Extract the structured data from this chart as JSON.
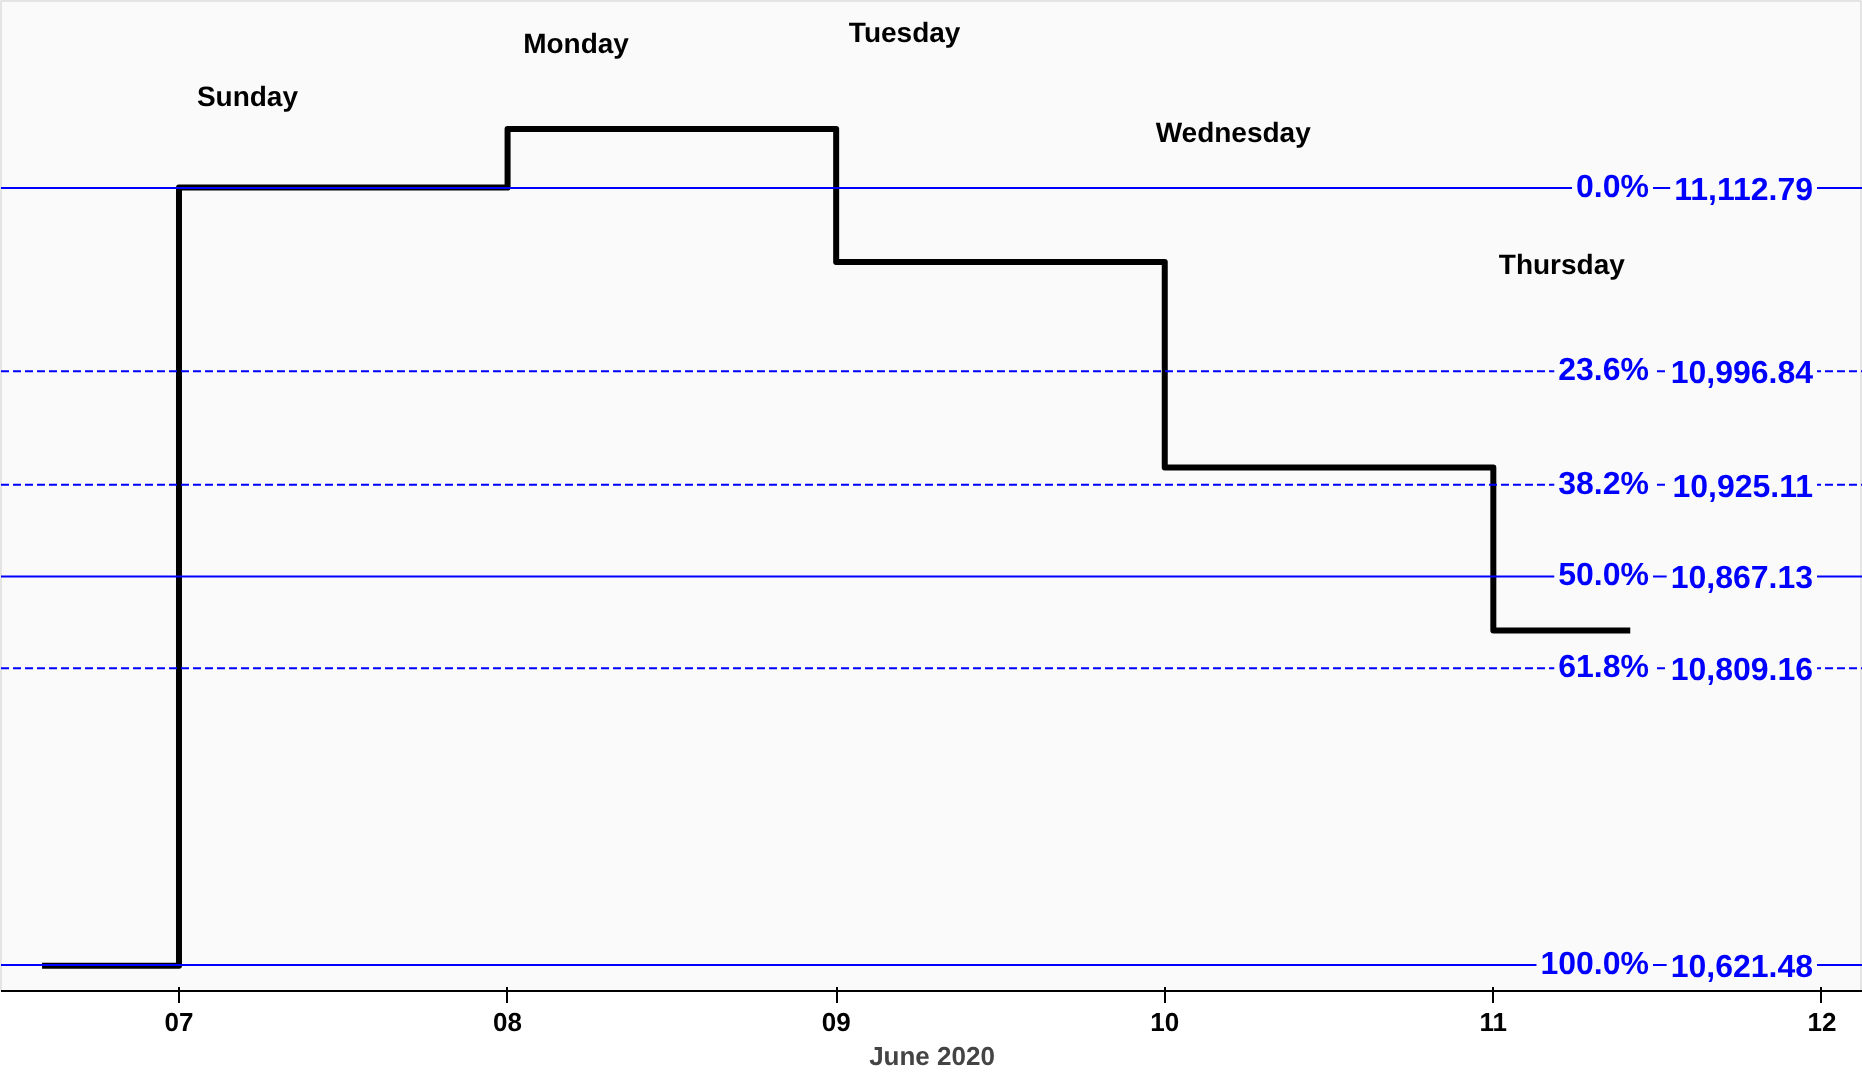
{
  "chart_data": {
    "type": "step",
    "xlabel": "June 2020",
    "x": [
      "2020-06-06T14:00",
      "2020-06-07",
      "2020-06-08",
      "2020-06-09",
      "2020-06-10",
      "2020-06-11",
      "2020-06-11T10:00"
    ],
    "series": [
      {
        "color": "#000000",
        "values": [
          10621,
          11113,
          11150,
          11066,
          10936,
          10833,
          10833
        ]
      }
    ],
    "xlim": [
      "2020-06-06T11:00",
      "2020-06-12T03:00"
    ],
    "xticks": [
      {
        "value": "2020-06-07",
        "label": "07"
      },
      {
        "value": "2020-06-08",
        "label": "08"
      },
      {
        "value": "2020-06-09",
        "label": "09"
      },
      {
        "value": "2020-06-10",
        "label": "10"
      },
      {
        "value": "2020-06-11",
        "label": "11"
      },
      {
        "value": "2020-06-12",
        "label": "12"
      }
    ],
    "ylim": [
      10605,
      11231
    ],
    "tick_labels": "x",
    "grid": false,
    "line_style": "solid",
    "ref_lines": [
      {
        "axis": "y",
        "value": 11112.79,
        "label": "0.0% 11,112.79",
        "color": "#0000ff",
        "line_style": "solid"
      },
      {
        "axis": "y",
        "value": 10996.84,
        "label": "23.6% 10,996.84",
        "color": "#0000ff",
        "line_style": "dashed"
      },
      {
        "axis": "y",
        "value": 10925.11,
        "label": "38.2% 10,925.11",
        "color": "#0000ff",
        "line_style": "dashed"
      },
      {
        "axis": "y",
        "value": 10867.13,
        "label": "50.0% 10,867.13",
        "color": "#0000ff",
        "line_style": "solid"
      },
      {
        "axis": "y",
        "value": 10809.16,
        "label": "61.8% 10,809.16",
        "color": "#0000ff",
        "line_style": "dashed"
      },
      {
        "axis": "y",
        "value": 10621.48,
        "label": "100.0% 10,621.48",
        "color": "#0000ff",
        "line_style": "solid"
      }
    ],
    "annotations": [
      "Sunday",
      "Monday",
      "Tuesday",
      "Wednesday",
      "Thursday"
    ]
  }
}
